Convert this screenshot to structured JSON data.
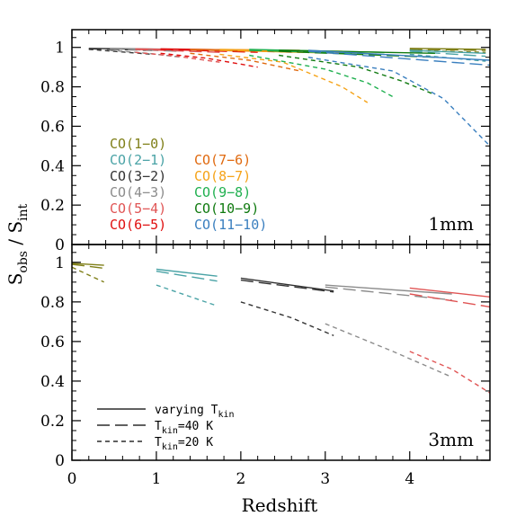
{
  "chart_data": {
    "type": "line",
    "xlabel": "Redshift",
    "ylabel": "S_obs / S_int",
    "xlim": [
      0,
      4.95
    ],
    "x_ticks": [
      "0",
      "1",
      "2",
      "3",
      "4"
    ],
    "panels": [
      {
        "tag": "1mm",
        "ylim": [
          0,
          1.09
        ],
        "y_ticks": [
          "0",
          "0.2",
          "0.4",
          "0.6",
          "0.8",
          "1"
        ],
        "series": [
          {
            "name": "CO(1−0)",
            "color": "#7f7f18",
            "solid": [
              [
                4.0,
                0.995
              ],
              [
                4.9,
                0.99
              ]
            ],
            "long": [
              [
                4.0,
                0.99
              ],
              [
                4.9,
                0.985
              ]
            ],
            "short": [
              [
                4.0,
                0.985
              ],
              [
                4.9,
                0.975
              ]
            ]
          },
          {
            "name": "CO(2−1)",
            "color": "#4aa3a6",
            "solid": [
              [
                4.0,
                0.985
              ],
              [
                4.9,
                0.97
              ]
            ],
            "long": [
              [
                4.0,
                0.98
              ],
              [
                4.9,
                0.955
              ]
            ],
            "short": [
              [
                4.0,
                0.965
              ],
              [
                4.9,
                0.93
              ]
            ]
          },
          {
            "name": "CO(3−2)",
            "color": "#333333",
            "solid": [
              [
                0.2,
                0.995
              ],
              [
                0.95,
                0.99
              ]
            ],
            "long": [
              [
                0.2,
                0.993
              ],
              [
                0.95,
                0.985
              ]
            ],
            "short": [
              [
                0.2,
                0.99
              ],
              [
                0.95,
                0.965
              ]
            ]
          },
          {
            "name": "CO(4−3)",
            "color": "#8c8c8c",
            "solid": [
              [
                0.45,
                0.995
              ],
              [
                1.3,
                0.99
              ]
            ],
            "long": [
              [
                0.45,
                0.993
              ],
              [
                1.3,
                0.98
              ]
            ],
            "short": [
              [
                0.45,
                0.985
              ],
              [
                0.9,
                0.97
              ],
              [
                1.3,
                0.95
              ]
            ]
          },
          {
            "name": "CO(5−4)",
            "color": "#e05555",
            "solid": [
              [
                0.75,
                0.993
              ],
              [
                1.75,
                0.985
              ]
            ],
            "long": [
              [
                0.75,
                0.99
              ],
              [
                1.75,
                0.975
              ]
            ],
            "short": [
              [
                0.75,
                0.975
              ],
              [
                1.25,
                0.955
              ],
              [
                1.75,
                0.925
              ]
            ]
          },
          {
            "name": "CO(6−5)",
            "color": "#e01010",
            "solid": [
              [
                1.05,
                0.993
              ],
              [
                2.2,
                0.985
              ]
            ],
            "long": [
              [
                1.05,
                0.99
              ],
              [
                2.2,
                0.975
              ]
            ],
            "short": [
              [
                1.05,
                0.97
              ],
              [
                1.6,
                0.945
              ],
              [
                2.2,
                0.9
              ]
            ]
          },
          {
            "name": "CO(7−6)",
            "color": "#e06a10",
            "solid": [
              [
                1.4,
                0.99
              ],
              [
                2.7,
                0.985
              ]
            ],
            "long": [
              [
                1.4,
                0.988
              ],
              [
                2.7,
                0.975
              ]
            ],
            "short": [
              [
                1.4,
                0.97
              ],
              [
                2.1,
                0.935
              ],
              [
                2.7,
                0.88
              ]
            ]
          },
          {
            "name": "CO(8−7)",
            "color": "#f5a318",
            "solid": [
              [
                1.75,
                0.99
              ],
              [
                3.2,
                0.98
              ]
            ],
            "long": [
              [
                1.75,
                0.985
              ],
              [
                3.2,
                0.97
              ]
            ],
            "short": [
              [
                1.75,
                0.965
              ],
              [
                2.5,
                0.925
              ],
              [
                3.2,
                0.8
              ],
              [
                3.5,
                0.72
              ]
            ]
          },
          {
            "name": "CO(9−8)",
            "color": "#20b050",
            "solid": [
              [
                2.1,
                0.99
              ],
              [
                3.7,
                0.975
              ]
            ],
            "long": [
              [
                2.1,
                0.985
              ],
              [
                3.7,
                0.965
              ]
            ],
            "short": [
              [
                2.1,
                0.96
              ],
              [
                3.0,
                0.89
              ],
              [
                3.5,
                0.82
              ],
              [
                3.8,
                0.75
              ]
            ]
          },
          {
            "name": "CO(10−9)",
            "color": "#107a10",
            "solid": [
              [
                2.45,
                0.985
              ],
              [
                4.3,
                0.97
              ]
            ],
            "long": [
              [
                2.45,
                0.98
              ],
              [
                4.3,
                0.95
              ]
            ],
            "short": [
              [
                2.45,
                0.96
              ],
              [
                3.4,
                0.9
              ],
              [
                3.9,
                0.83
              ],
              [
                4.3,
                0.76
              ]
            ]
          },
          {
            "name": "CO(11−10)",
            "color": "#3a7fbf",
            "solid": [
              [
                2.8,
                0.985
              ],
              [
                4.95,
                0.935
              ]
            ],
            "long": [
              [
                2.8,
                0.98
              ],
              [
                4.95,
                0.91
              ]
            ],
            "short": [
              [
                2.8,
                0.95
              ],
              [
                3.8,
                0.88
              ],
              [
                4.4,
                0.74
              ],
              [
                4.95,
                0.5
              ]
            ]
          }
        ]
      },
      {
        "tag": "3mm",
        "ylim": [
          0,
          1.09
        ],
        "y_ticks": [
          "0",
          "0.2",
          "0.4",
          "0.6",
          "0.8",
          "1"
        ],
        "series": [
          {
            "name": "CO(1−0)",
            "color": "#7f7f18",
            "solid": [
              [
                0.0,
                0.995
              ],
              [
                0.38,
                0.985
              ]
            ],
            "long": [
              [
                0.0,
                0.99
              ],
              [
                0.38,
                0.97
              ]
            ],
            "short": [
              [
                0.0,
                0.975
              ],
              [
                0.38,
                0.9
              ]
            ]
          },
          {
            "name": "CO(2−1)",
            "color": "#4aa3a6",
            "solid": [
              [
                1.0,
                0.965
              ],
              [
                1.72,
                0.93
              ]
            ],
            "long": [
              [
                1.0,
                0.955
              ],
              [
                1.72,
                0.905
              ]
            ],
            "short": [
              [
                1.0,
                0.885
              ],
              [
                1.72,
                0.78
              ]
            ]
          },
          {
            "name": "CO(3−2)",
            "color": "#333333",
            "solid": [
              [
                2.0,
                0.92
              ],
              [
                3.1,
                0.855
              ]
            ],
            "long": [
              [
                2.0,
                0.91
              ],
              [
                3.1,
                0.85
              ]
            ],
            "short": [
              [
                2.0,
                0.8
              ],
              [
                2.6,
                0.72
              ],
              [
                3.1,
                0.63
              ]
            ]
          },
          {
            "name": "CO(4−3)",
            "color": "#8c8c8c",
            "solid": [
              [
                3.0,
                0.885
              ],
              [
                4.5,
                0.84
              ]
            ],
            "long": [
              [
                3.0,
                0.875
              ],
              [
                4.5,
                0.81
              ]
            ],
            "short": [
              [
                3.0,
                0.69
              ],
              [
                3.8,
                0.55
              ],
              [
                4.5,
                0.42
              ]
            ]
          },
          {
            "name": "CO(5−4)",
            "color": "#e05555",
            "solid": [
              [
                4.0,
                0.87
              ],
              [
                4.95,
                0.825
              ]
            ],
            "long": [
              [
                4.0,
                0.84
              ],
              [
                4.95,
                0.775
              ]
            ],
            "short": [
              [
                4.0,
                0.55
              ],
              [
                4.5,
                0.46
              ],
              [
                4.95,
                0.34
              ]
            ]
          }
        ],
        "styles": [
          {
            "label": "varying T",
            "sub": "kin",
            "suffix": "",
            "dash": "solid"
          },
          {
            "label": "T",
            "sub": "kin",
            "suffix": "=40 K",
            "dash": "long"
          },
          {
            "label": "T",
            "sub": "kin",
            "suffix": "=20 K",
            "dash": "short"
          }
        ]
      }
    ],
    "legend_columns": [
      [
        "CO(1−0)",
        "CO(2−1)",
        "CO(3−2)",
        "CO(4−3)",
        "CO(5−4)",
        "CO(6−5)"
      ],
      [
        "CO(7−6)",
        "CO(8−7)",
        "CO(9−8)",
        "CO(10−9)",
        "CO(11−10)"
      ]
    ],
    "legend_placement": "lower-left of top panel",
    "grid": false
  }
}
